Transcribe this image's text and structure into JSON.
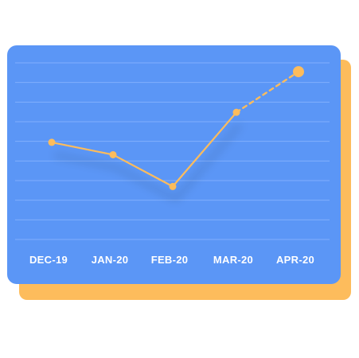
{
  "colors": {
    "card_front": "#5b96f6",
    "card_back": "#fdbc5c",
    "line": "#fdbc5c",
    "gridline": "#8bb6ff",
    "tick_text": "#ffffff"
  },
  "chart_data": {
    "type": "line",
    "title": "",
    "xlabel": "",
    "ylabel": "",
    "categories": [
      "DEC-19",
      "JAN-20",
      "FEB-20",
      "MAR-20",
      "APR-20"
    ],
    "series": [
      {
        "values": [
          55,
          48,
          30,
          72,
          95
        ],
        "projected_from_index": 3
      }
    ],
    "ylim": [
      0,
      100
    ],
    "grid": true,
    "gridline_count": 10,
    "legend": "none"
  }
}
